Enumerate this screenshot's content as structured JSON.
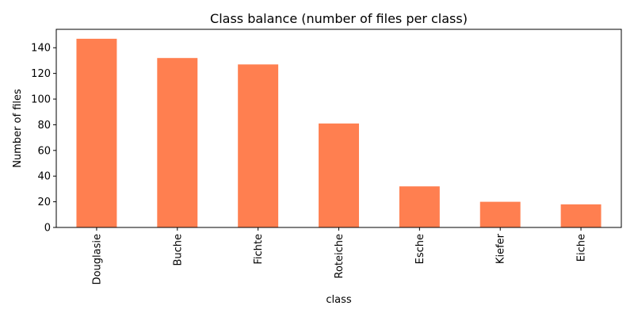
{
  "chart_data": {
    "type": "bar",
    "title": "Class balance (number of files per class)",
    "xlabel": "class",
    "ylabel": "Number of files",
    "categories": [
      "Douglasie",
      "Buche",
      "Fichte",
      "Roteiche",
      "Esche",
      "Kiefer",
      "Eiche"
    ],
    "values": [
      147,
      132,
      127,
      81,
      32,
      20,
      18
    ],
    "ylim": [
      0,
      154.35
    ],
    "yticks": [
      0,
      20,
      40,
      60,
      80,
      100,
      120,
      140
    ],
    "bar_color": "#ff7f50",
    "grid": false,
    "legend": "none"
  }
}
